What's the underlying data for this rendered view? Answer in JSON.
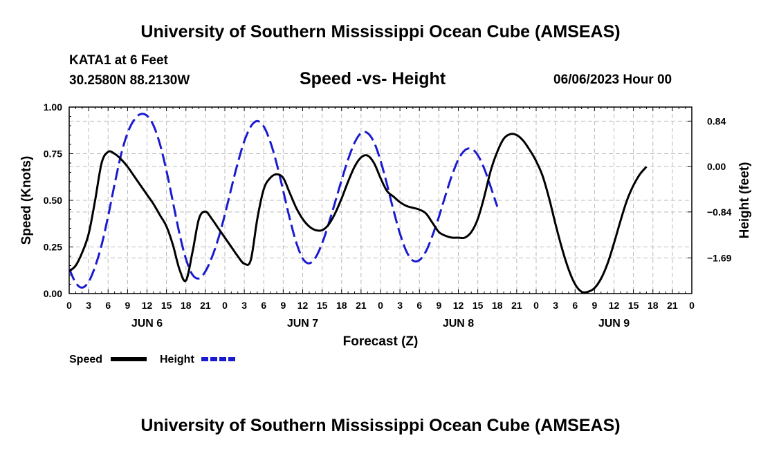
{
  "header": {
    "title": "University of Southern Mississippi Ocean Cube (AMSEAS)",
    "station": "KATA1 at 6 Feet",
    "coords": "30.2580N  88.2130W",
    "date": "06/06/2023 Hour 00"
  },
  "footer": {
    "title": "University of Southern Mississippi Ocean Cube (AMSEAS)"
  },
  "colors": {
    "speed": "#000000",
    "height": "#1a1ad0",
    "grid": "#bbbbbb"
  },
  "chart_data": {
    "type": "line",
    "title": "Speed -vs- Height",
    "xlabel": "Forecast (Z)",
    "ylabel": "Speed (Knots)",
    "y2label": "Height (feet)",
    "xlim": [
      0,
      96
    ],
    "ylim": [
      0,
      1.0
    ],
    "y2lim": [
      -2.35,
      1.1
    ],
    "x_ticks": [
      0,
      3,
      6,
      9,
      12,
      15,
      18,
      21,
      24,
      27,
      30,
      33,
      36,
      39,
      42,
      45,
      48,
      51,
      54,
      57,
      60,
      63,
      66,
      69,
      72,
      75,
      78,
      81,
      84,
      87,
      90,
      93,
      96
    ],
    "x_tick_labels": [
      "0",
      "3",
      "6",
      "9",
      "12",
      "15",
      "18",
      "21",
      "0",
      "3",
      "6",
      "9",
      "12",
      "15",
      "18",
      "21",
      "0",
      "3",
      "6",
      "9",
      "12",
      "15",
      "18",
      "21",
      "0",
      "3",
      "6",
      "9",
      "12",
      "15",
      "18",
      "21",
      "0"
    ],
    "day_labels": [
      {
        "x": 12,
        "label": "JUN 6"
      },
      {
        "x": 36,
        "label": "JUN 7"
      },
      {
        "x": 60,
        "label": "JUN 8"
      },
      {
        "x": 84,
        "label": "JUN 9"
      }
    ],
    "y_ticks": [
      0,
      0.25,
      0.5,
      0.75,
      1.0
    ],
    "y_tick_labels": [
      "0.00",
      "0.25",
      "0.50",
      "0.75",
      "1.00"
    ],
    "y2_ticks": [
      0.84,
      0,
      -0.84,
      -1.69
    ],
    "y2_tick_labels": [
      "0.84",
      "0.00",
      "−0.84",
      "−1.69"
    ],
    "grid": true,
    "legend": [
      "Speed",
      "Height"
    ],
    "series": [
      {
        "name": "Speed",
        "axis": "left",
        "style": "solid",
        "points": [
          [
            0,
            0.12
          ],
          [
            1,
            0.15
          ],
          [
            2,
            0.22
          ],
          [
            3,
            0.32
          ],
          [
            4,
            0.5
          ],
          [
            5,
            0.7
          ],
          [
            6,
            0.76
          ],
          [
            7,
            0.75
          ],
          [
            8,
            0.72
          ],
          [
            9,
            0.68
          ],
          [
            10,
            0.63
          ],
          [
            11,
            0.58
          ],
          [
            12,
            0.53
          ],
          [
            13,
            0.48
          ],
          [
            14,
            0.42
          ],
          [
            15,
            0.36
          ],
          [
            16,
            0.26
          ],
          [
            17,
            0.13
          ],
          [
            18,
            0.07
          ],
          [
            19,
            0.22
          ],
          [
            20,
            0.4
          ],
          [
            21,
            0.44
          ],
          [
            22,
            0.4
          ],
          [
            23,
            0.35
          ],
          [
            24,
            0.3
          ],
          [
            25,
            0.25
          ],
          [
            26,
            0.2
          ],
          [
            27,
            0.16
          ],
          [
            28,
            0.18
          ],
          [
            29,
            0.4
          ],
          [
            30,
            0.56
          ],
          [
            31,
            0.62
          ],
          [
            32,
            0.64
          ],
          [
            33,
            0.62
          ],
          [
            34,
            0.54
          ],
          [
            35,
            0.46
          ],
          [
            36,
            0.4
          ],
          [
            37,
            0.36
          ],
          [
            38,
            0.34
          ],
          [
            39,
            0.34
          ],
          [
            40,
            0.37
          ],
          [
            41,
            0.43
          ],
          [
            42,
            0.51
          ],
          [
            43,
            0.6
          ],
          [
            44,
            0.68
          ],
          [
            45,
            0.73
          ],
          [
            46,
            0.74
          ],
          [
            47,
            0.7
          ],
          [
            48,
            0.62
          ],
          [
            49,
            0.55
          ],
          [
            50,
            0.52
          ],
          [
            51,
            0.49
          ],
          [
            52,
            0.47
          ],
          [
            53,
            0.46
          ],
          [
            54,
            0.45
          ],
          [
            55,
            0.43
          ],
          [
            56,
            0.38
          ],
          [
            57,
            0.33
          ],
          [
            58,
            0.31
          ],
          [
            59,
            0.3
          ],
          [
            60,
            0.3
          ],
          [
            61,
            0.3
          ],
          [
            62,
            0.33
          ],
          [
            63,
            0.4
          ],
          [
            64,
            0.52
          ],
          [
            65,
            0.66
          ],
          [
            66,
            0.76
          ],
          [
            67,
            0.83
          ],
          [
            68,
            0.855
          ],
          [
            69,
            0.85
          ],
          [
            70,
            0.82
          ],
          [
            71,
            0.77
          ],
          [
            72,
            0.71
          ],
          [
            73,
            0.63
          ],
          [
            74,
            0.51
          ],
          [
            75,
            0.37
          ],
          [
            76,
            0.24
          ],
          [
            77,
            0.13
          ],
          [
            78,
            0.05
          ],
          [
            79,
            0.01
          ],
          [
            80,
            0.01
          ],
          [
            81,
            0.03
          ],
          [
            82,
            0.08
          ],
          [
            83,
            0.16
          ],
          [
            84,
            0.27
          ],
          [
            85,
            0.39
          ],
          [
            86,
            0.5
          ],
          [
            87,
            0.58
          ],
          [
            88,
            0.64
          ],
          [
            89,
            0.68
          ]
        ]
      },
      {
        "name": "Height",
        "axis": "right",
        "style": "dashed",
        "points": [
          [
            0,
            -1.89
          ],
          [
            1,
            -2.15
          ],
          [
            2,
            -2.24
          ],
          [
            3,
            -2.13
          ],
          [
            4,
            -1.85
          ],
          [
            5,
            -1.45
          ],
          [
            6,
            -0.92
          ],
          [
            7,
            -0.33
          ],
          [
            8,
            0.22
          ],
          [
            9,
            0.62
          ],
          [
            10,
            0.86
          ],
          [
            11,
            0.97
          ],
          [
            12,
            0.94
          ],
          [
            13,
            0.76
          ],
          [
            14,
            0.41
          ],
          [
            15,
            -0.08
          ],
          [
            16,
            -0.66
          ],
          [
            17,
            -1.24
          ],
          [
            18,
            -1.71
          ],
          [
            19,
            -2.0
          ],
          [
            20,
            -2.07
          ],
          [
            21,
            -1.94
          ],
          [
            22,
            -1.68
          ],
          [
            23,
            -1.33
          ],
          [
            24,
            -0.89
          ],
          [
            25,
            -0.4
          ],
          [
            26,
            0.07
          ],
          [
            27,
            0.47
          ],
          [
            28,
            0.74
          ],
          [
            29,
            0.84
          ],
          [
            30,
            0.74
          ],
          [
            31,
            0.46
          ],
          [
            32,
            0.05
          ],
          [
            33,
            -0.45
          ],
          [
            34,
            -0.96
          ],
          [
            35,
            -1.4
          ],
          [
            36,
            -1.7
          ],
          [
            37,
            -1.79
          ],
          [
            38,
            -1.68
          ],
          [
            39,
            -1.42
          ],
          [
            40,
            -1.06
          ],
          [
            41,
            -0.66
          ],
          [
            42,
            -0.25
          ],
          [
            43,
            0.13
          ],
          [
            44,
            0.44
          ],
          [
            45,
            0.62
          ],
          [
            46,
            0.62
          ],
          [
            47,
            0.45
          ],
          [
            48,
            0.11
          ],
          [
            49,
            -0.33
          ],
          [
            50,
            -0.81
          ],
          [
            51,
            -1.24
          ],
          [
            52,
            -1.57
          ],
          [
            53,
            -1.74
          ],
          [
            54,
            -1.73
          ],
          [
            55,
            -1.57
          ],
          [
            56,
            -1.28
          ],
          [
            57,
            -0.93
          ],
          [
            58,
            -0.54
          ],
          [
            59,
            -0.17
          ],
          [
            60,
            0.13
          ],
          [
            61,
            0.3
          ],
          [
            62,
            0.33
          ],
          [
            63,
            0.21
          ],
          [
            64,
            -0.04
          ],
          [
            65,
            -0.38
          ],
          [
            66,
            -0.74
          ]
        ]
      }
    ]
  }
}
